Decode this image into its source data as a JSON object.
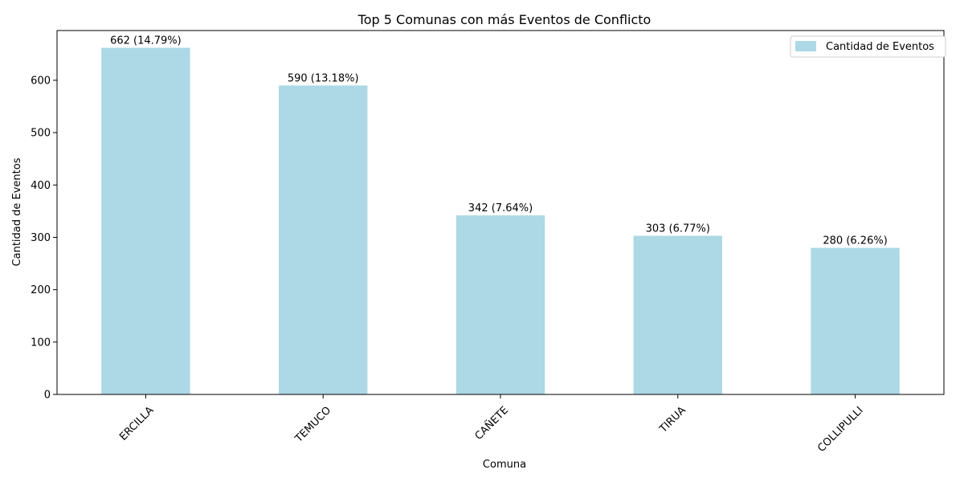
{
  "chart_data": {
    "type": "bar",
    "title": "Top 5 Comunas con más Eventos de Conflicto",
    "xlabel": "Comuna",
    "ylabel": "Cantidad de Eventos",
    "categories": [
      "ERCILLA",
      "TEMUCO",
      "CAÑETE",
      "TIRUA",
      "COLLIPULLI"
    ],
    "series": [
      {
        "name": "Cantidad de Eventos",
        "values": [
          662,
          590,
          342,
          303,
          280
        ],
        "color": "#add8e6"
      }
    ],
    "data_labels": [
      "662 (14.79%)",
      "590 (13.18%)",
      "342 (7.64%)",
      "303 (6.77%)",
      "280 (6.26%)"
    ],
    "y_ticks": [
      0,
      100,
      200,
      300,
      400,
      500,
      600
    ],
    "ylim": [
      0,
      695
    ],
    "grid": false,
    "legend_position": "top-right"
  }
}
